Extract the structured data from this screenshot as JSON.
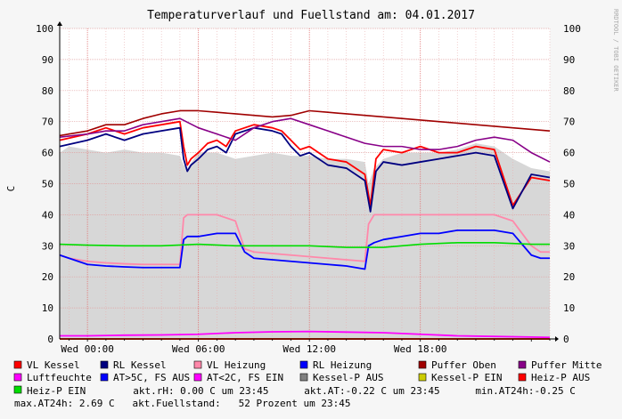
{
  "chart_data": {
    "type": "line",
    "title": "Temperaturverlauf und Fuellstand am: 04.01.2017",
    "watermark": "RRDTOOL / TOBI OETIKER",
    "ylabel": "C",
    "ylim": [
      0,
      100
    ],
    "yticks": [
      0,
      10,
      20,
      30,
      40,
      50,
      60,
      70,
      80,
      90,
      100
    ],
    "xlim_hours": [
      -1.5,
      25
    ],
    "x_ticks": [
      {
        "hour": 0,
        "label": "Wed 00:00"
      },
      {
        "hour": 6,
        "label": "Wed 06:00"
      },
      {
        "hour": 12,
        "label": "Wed 12:00"
      },
      {
        "hour": 18,
        "label": "Wed 18:00"
      }
    ],
    "grid": true,
    "legend_position": "bottom",
    "series": [
      {
        "name": "VL Kessel",
        "color": "#ff0000",
        "x": [
          -1.5,
          0,
          1,
          2,
          3,
          4,
          5,
          5.2,
          5.4,
          5.6,
          6,
          6.5,
          7,
          7.5,
          8,
          9,
          10,
          10.5,
          11,
          11.5,
          12,
          13,
          14,
          15,
          15.3,
          15.6,
          16,
          17,
          18,
          19,
          20,
          21,
          22,
          23,
          24,
          25
        ],
        "y": [
          64,
          66,
          68,
          66,
          68,
          69,
          70,
          62,
          56,
          58,
          60,
          63,
          64,
          62,
          67,
          69,
          68,
          67,
          64,
          61,
          62,
          58,
          57,
          53,
          43,
          58,
          61,
          60,
          62,
          60,
          60,
          62,
          61,
          43,
          52,
          51
        ]
      },
      {
        "name": "RL Kessel",
        "color": "#000080",
        "x": [
          -1.5,
          0,
          1,
          2,
          3,
          4,
          5,
          5.2,
          5.4,
          5.6,
          6,
          6.5,
          7,
          7.5,
          8,
          9,
          10,
          10.5,
          11,
          11.5,
          12,
          13,
          14,
          15,
          15.3,
          15.6,
          16,
          17,
          18,
          19,
          20,
          21,
          22,
          23,
          24,
          25
        ],
        "y": [
          62,
          64,
          66,
          64,
          66,
          67,
          68,
          58,
          54,
          56,
          58,
          61,
          62,
          60,
          66,
          68,
          67,
          66,
          62,
          59,
          60,
          56,
          55,
          51,
          41,
          54,
          57,
          56,
          57,
          58,
          59,
          60,
          59,
          42,
          53,
          52
        ]
      },
      {
        "name": "VL Heizung",
        "color": "#ff88aa",
        "x": [
          -1.5,
          -1,
          0,
          1,
          2,
          3,
          4,
          5,
          5.2,
          5.4,
          6,
          7,
          8,
          8.5,
          9,
          10,
          11,
          12,
          13,
          14,
          15,
          15.2,
          15.5,
          16,
          17,
          18,
          19,
          20,
          21,
          22,
          23,
          24,
          24.5,
          25
        ],
        "y": [
          27,
          26,
          25,
          24.5,
          24.2,
          24,
          24,
          24,
          39,
          40,
          40,
          40,
          38,
          29,
          28,
          27.5,
          27,
          26.5,
          26,
          25.5,
          25,
          37,
          40,
          40,
          40,
          40,
          40,
          40,
          40,
          40,
          38,
          30,
          28,
          28
        ]
      },
      {
        "name": "RL Heizung",
        "color": "#0000ff",
        "x": [
          -1.5,
          -1,
          0,
          1,
          2,
          3,
          4,
          5,
          5.2,
          5.4,
          6,
          7,
          8,
          8.5,
          9,
          10,
          11,
          12,
          13,
          14,
          15,
          15.2,
          15.5,
          16,
          17,
          18,
          19,
          20,
          21,
          22,
          23,
          24,
          24.5,
          25
        ],
        "y": [
          27,
          26,
          24,
          23.5,
          23.2,
          23,
          23,
          23,
          32,
          33,
          33,
          34,
          34,
          28,
          26,
          25.5,
          25,
          24.5,
          24,
          23.5,
          22.5,
          30,
          31,
          32,
          33,
          34,
          34,
          35,
          35,
          35,
          34,
          27,
          26,
          26
        ]
      },
      {
        "name": "Puffer Oben",
        "color": "#a00000",
        "x": [
          -1.5,
          0,
          1,
          2,
          3,
          4,
          5,
          6,
          7,
          8,
          9,
          10,
          11,
          12,
          13,
          14,
          15,
          16,
          17,
          18,
          19,
          20,
          21,
          22,
          23,
          24,
          25
        ],
        "y": [
          65.5,
          67,
          69,
          69,
          71,
          72.5,
          73.5,
          73.5,
          73,
          72.5,
          72,
          71.5,
          72,
          73.5,
          73,
          72.5,
          72,
          71.5,
          71,
          70.5,
          70,
          69.5,
          69,
          68.5,
          68,
          67.5,
          67
        ]
      },
      {
        "name": "Puffer Mitte",
        "color": "#880088",
        "x": [
          -1.5,
          0,
          1,
          2,
          3,
          4,
          5,
          6,
          7,
          8,
          9,
          10,
          11,
          12,
          13,
          14,
          15,
          16,
          17,
          18,
          19,
          20,
          21,
          22,
          23,
          24,
          25
        ],
        "y": [
          65,
          66,
          67,
          67,
          69,
          70,
          71,
          68,
          66,
          64,
          68,
          70,
          71,
          69,
          67,
          65,
          63,
          62,
          62,
          61,
          61,
          62,
          64,
          65,
          64,
          60,
          57
        ]
      },
      {
        "name": "Luftfeuchte",
        "color": "#ff00ff",
        "x": [
          -1.5,
          25
        ],
        "y": [
          0,
          0
        ]
      },
      {
        "name": "AT>5C, FS AUS",
        "color": "#0000ff",
        "x": [
          -1.5,
          25
        ],
        "y": [
          0,
          0
        ]
      },
      {
        "name": "AT<2C, FS EIN",
        "color": "#ff00ff",
        "x": [
          -1.5,
          0,
          2,
          4,
          6,
          8,
          10,
          12,
          14,
          16,
          18,
          20,
          22,
          24,
          25
        ],
        "y": [
          1,
          1,
          1.2,
          1.3,
          1.5,
          2,
          2.3,
          2.4,
          2.2,
          2,
          1.5,
          1,
          0.8,
          0.6,
          0.5
        ]
      },
      {
        "name": "Kessel-P AUS",
        "color": "#808080",
        "x": [
          -1.5,
          25
        ],
        "y": [
          0,
          0
        ]
      },
      {
        "name": "Kessel-P EIN",
        "color": "#cccc00",
        "x": [
          -1.5,
          25
        ],
        "y": [
          0,
          0
        ]
      },
      {
        "name": "Heiz-P AUS",
        "color": "#ff0000",
        "x": [
          -1.5,
          25
        ],
        "y": [
          0,
          0
        ]
      },
      {
        "name": "Heiz-P EIN",
        "color": "#00dd00",
        "x": [
          -1.5,
          0,
          2,
          4,
          6,
          8,
          10,
          12,
          14,
          16,
          18,
          20,
          22,
          24,
          25
        ],
        "y": [
          30.5,
          30.2,
          30,
          30,
          30.5,
          30,
          30,
          30,
          29.5,
          29.5,
          30.5,
          31,
          31,
          30.5,
          30.5
        ]
      }
    ],
    "fill_area": {
      "name": "Fuellstand",
      "color": "#d7d7d7",
      "x": [
        -1.5,
        -1,
        0,
        1,
        2,
        3,
        4,
        5,
        5.2,
        5.4,
        6,
        7,
        8,
        9,
        10,
        11,
        12,
        13,
        14,
        15,
        15.2,
        15.5,
        16,
        17,
        18,
        19,
        20,
        21,
        22,
        23,
        24,
        25
      ],
      "y": [
        60,
        62,
        61,
        60,
        61,
        60,
        60,
        59,
        56,
        55,
        60,
        60,
        58,
        59,
        60,
        59,
        59,
        58,
        58,
        57,
        50,
        55,
        58,
        60,
        60,
        60,
        61,
        63,
        62,
        58,
        55,
        54
      ]
    }
  },
  "stats": {
    "line1": "Heiz-P EIN        akt.rH: 0.00 C um 23:45      akt.AT:-0.22 C um 23:45      min.AT24h:-0.25 C",
    "line2": "max.AT24h: 2.69 C   akt.Fuellstand:   52 Prozent um 23:45"
  }
}
